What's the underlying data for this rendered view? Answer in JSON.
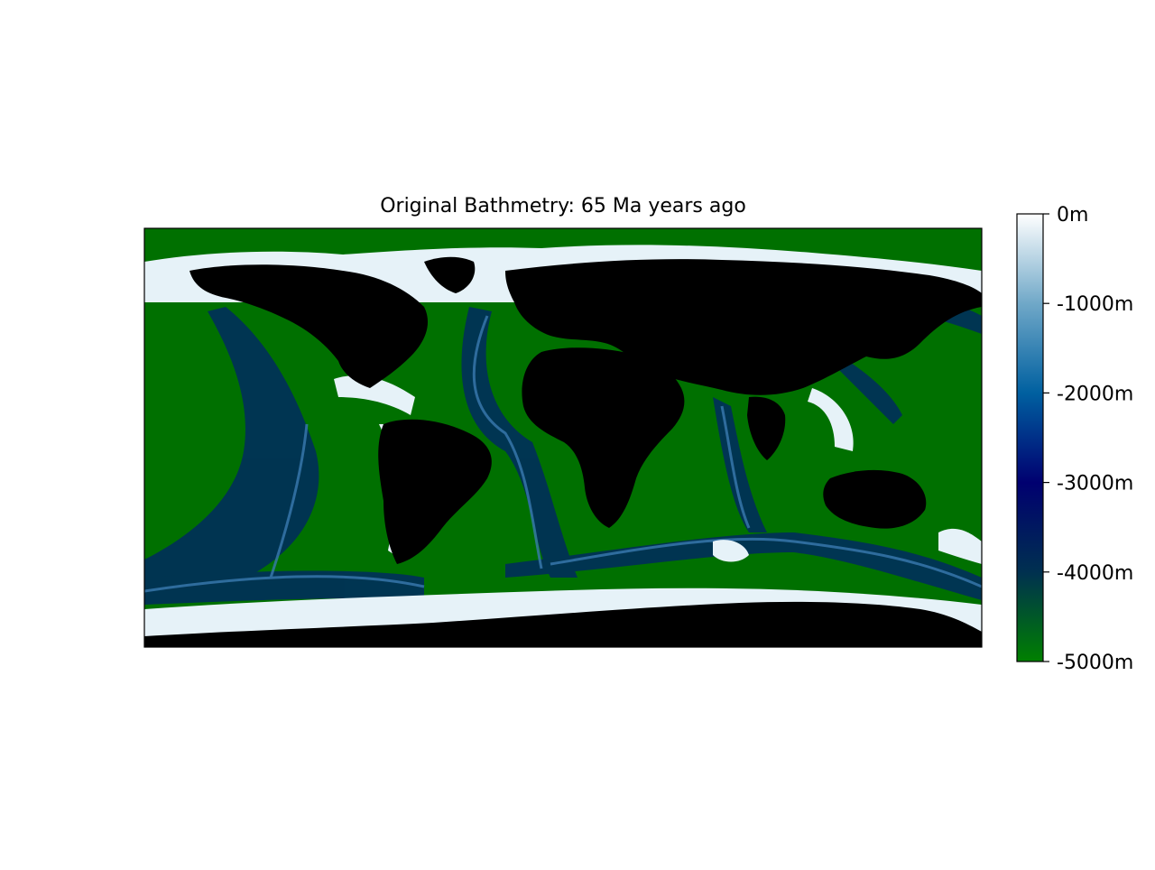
{
  "title": "Original Bathmetry: 65 Ma years ago",
  "colorbar": {
    "tick_labels": [
      "0m",
      "-1000m",
      "-2000m",
      "-3000m",
      "-4000m",
      "-5000m"
    ],
    "range": [
      -5000,
      0
    ],
    "unit": "m",
    "colormap": "ocean",
    "colormap_stops": [
      "#008000",
      "#003050",
      "#000070",
      "#0060a0",
      "#70a8c8",
      "#ffffff"
    ]
  },
  "map": {
    "projection": "plate-carree",
    "land_color": "#000000",
    "shelf_color": "#e6f2f8",
    "deep_ocean_color": "#007000"
  }
}
